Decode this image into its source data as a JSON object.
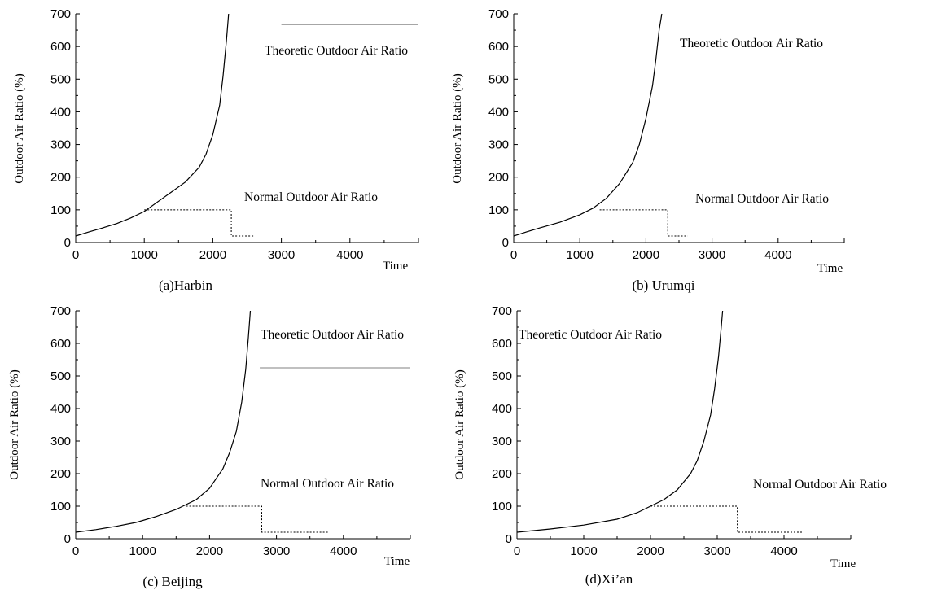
{
  "chart_data": [
    {
      "type": "line",
      "caption": "(a)Harbin",
      "ylabel": "Outdoor Air Ratio (%)",
      "xlabel": "Time",
      "xlim": [
        0,
        5000
      ],
      "ylim": [
        0,
        700
      ],
      "xticks": [
        0,
        1000,
        2000,
        3000,
        4000
      ],
      "yticks": [
        0,
        100,
        200,
        300,
        400,
        500,
        600,
        700
      ],
      "annotations": {
        "theoretic": "Theoretic Outdoor Air Ratio",
        "normal": "Normal Outdoor Air Ratio"
      },
      "theoretic_line": {
        "x": [
          3000,
          5000
        ],
        "y": 667
      },
      "series": [
        {
          "values": [
            [
              0,
              20
            ],
            [
              200,
              33
            ],
            [
              400,
              45
            ],
            [
              600,
              58
            ],
            [
              800,
              75
            ],
            [
              1000,
              95
            ],
            [
              1200,
              125
            ],
            [
              1400,
              155
            ],
            [
              1600,
              185
            ],
            [
              1800,
              230
            ],
            [
              1900,
              270
            ],
            [
              2000,
              330
            ],
            [
              2100,
              420
            ],
            [
              2150,
              510
            ],
            [
              2200,
              620
            ],
            [
              2230,
              700
            ]
          ]
        },
        {
          "style": "dotted",
          "values": [
            [
              1000,
              100
            ],
            [
              2270,
              100
            ],
            [
              2270,
              20
            ],
            [
              2600,
              20
            ]
          ]
        }
      ]
    },
    {
      "type": "line",
      "caption": "(b) Urumqi",
      "ylabel": "Outdoor Air Ratio (%)",
      "xlabel": "Time",
      "xlim": [
        0,
        5000
      ],
      "ylim": [
        0,
        700
      ],
      "xticks": [
        0,
        1000,
        2000,
        3000,
        4000
      ],
      "yticks": [
        0,
        100,
        200,
        300,
        400,
        500,
        600,
        700
      ],
      "annotations": {
        "theoretic": "Theoretic Outdoor Air Ratio",
        "normal": "Normal Outdoor Air Ratio"
      },
      "series": [
        {
          "values": [
            [
              0,
              20
            ],
            [
              200,
              33
            ],
            [
              400,
              45
            ],
            [
              700,
              62
            ],
            [
              1000,
              85
            ],
            [
              1200,
              105
            ],
            [
              1400,
              135
            ],
            [
              1600,
              180
            ],
            [
              1800,
              245
            ],
            [
              1900,
              300
            ],
            [
              2000,
              380
            ],
            [
              2100,
              480
            ],
            [
              2150,
              560
            ],
            [
              2200,
              650
            ],
            [
              2240,
              700
            ]
          ]
        },
        {
          "style": "dotted",
          "values": [
            [
              1300,
              100
            ],
            [
              2330,
              100
            ],
            [
              2330,
              20
            ],
            [
              2630,
              20
            ]
          ]
        }
      ]
    },
    {
      "type": "line",
      "caption": "(c)  Beijing",
      "ylabel": "Outdoor Air Ratio (%)",
      "xlabel": "Time",
      "xlim": [
        0,
        5000
      ],
      "ylim": [
        0,
        700
      ],
      "xticks": [
        0,
        1000,
        2000,
        3000,
        4000
      ],
      "yticks": [
        0,
        100,
        200,
        300,
        400,
        500,
        600,
        700
      ],
      "annotations": {
        "theoretic": "Theoretic Outdoor Air Ratio",
        "normal": "Normal Outdoor Air Ratio"
      },
      "theoretic_line": {
        "x": [
          2750,
          5000
        ],
        "y": 525
      },
      "series": [
        {
          "values": [
            [
              0,
              20
            ],
            [
              300,
              28
            ],
            [
              600,
              38
            ],
            [
              900,
              50
            ],
            [
              1200,
              68
            ],
            [
              1500,
              90
            ],
            [
              1800,
              120
            ],
            [
              2000,
              155
            ],
            [
              2200,
              215
            ],
            [
              2300,
              265
            ],
            [
              2400,
              330
            ],
            [
              2480,
              420
            ],
            [
              2540,
              520
            ],
            [
              2580,
              620
            ],
            [
              2610,
              700
            ]
          ]
        },
        {
          "style": "dotted",
          "values": [
            [
              1650,
              100
            ],
            [
              2780,
              100
            ],
            [
              2780,
              20
            ],
            [
              3780,
              20
            ]
          ]
        }
      ]
    },
    {
      "type": "line",
      "caption": "(d)Xi’an",
      "ylabel": "Outdoor Air Ratio (%)",
      "xlabel": "Time",
      "xlim": [
        0,
        5000
      ],
      "ylim": [
        0,
        700
      ],
      "xticks": [
        0,
        1000,
        2000,
        3000,
        4000
      ],
      "yticks": [
        0,
        100,
        200,
        300,
        400,
        500,
        600,
        700
      ],
      "annotations": {
        "theoretic": "Theoretic Outdoor Air Ratio",
        "normal": "Normal Outdoor Air Ratio"
      },
      "series": [
        {
          "values": [
            [
              0,
              20
            ],
            [
              500,
              30
            ],
            [
              1000,
              42
            ],
            [
              1500,
              60
            ],
            [
              1800,
              80
            ],
            [
              2000,
              100
            ],
            [
              2200,
              120
            ],
            [
              2400,
              150
            ],
            [
              2600,
              200
            ],
            [
              2700,
              240
            ],
            [
              2800,
              300
            ],
            [
              2900,
              380
            ],
            [
              2960,
              460
            ],
            [
              3020,
              560
            ],
            [
              3060,
              650
            ],
            [
              3080,
              700
            ]
          ]
        },
        {
          "style": "dotted",
          "values": [
            [
              2000,
              100
            ],
            [
              3300,
              100
            ],
            [
              3300,
              20
            ],
            [
              4300,
              20
            ]
          ]
        }
      ]
    }
  ]
}
